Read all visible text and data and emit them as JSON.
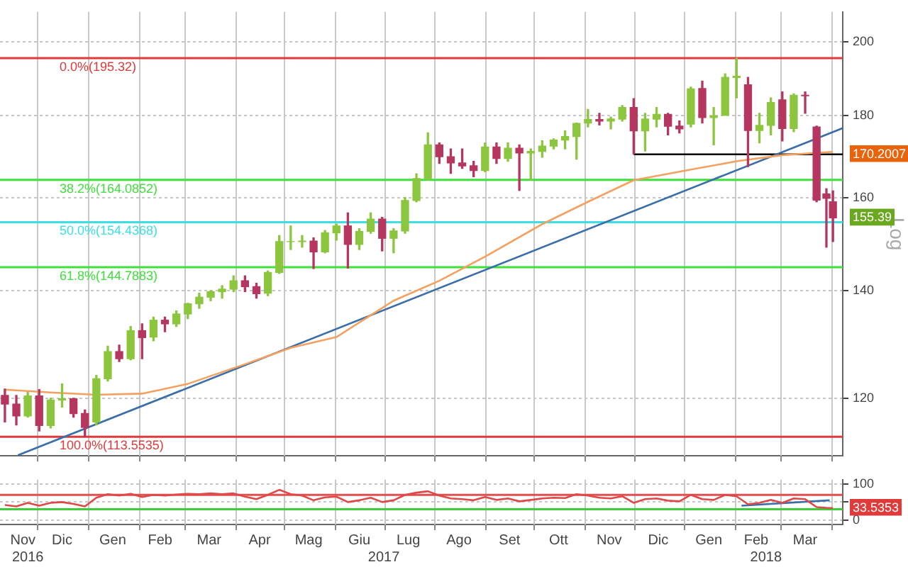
{
  "chart_data": [
    {
      "type": "candlestick",
      "ylabel": "Log",
      "log": true,
      "grid": true,
      "tick_labels": "y",
      "xlim": [
        "2016-11-08",
        "2018-04-08"
      ],
      "ylim": [
        110.5,
        208.7
      ],
      "yticks": [
        120,
        140,
        160,
        180,
        200,
        {
          "value": 170.2007,
          "label": "170.2007"
        },
        {
          "value": 155.39,
          "label": "155.39"
        }
      ],
      "xticks": [
        {
          "value": "2016-12-01",
          "label": null
        },
        {
          "value": "2017-01-01",
          "label": null
        },
        {
          "value": "2017-02-01",
          "label": null
        },
        {
          "value": "2017-03-01",
          "label": null
        },
        {
          "value": "2017-04-01",
          "label": null
        },
        {
          "value": "2017-05-01",
          "label": null
        },
        {
          "value": "2017-06-01",
          "label": null
        },
        {
          "value": "2017-07-01",
          "label": null
        },
        {
          "value": "2017-08-01",
          "label": null
        },
        {
          "value": "2017-09-01",
          "label": null
        },
        {
          "value": "2017-10-01",
          "label": null
        },
        {
          "value": "2017-11-01",
          "label": null
        },
        {
          "value": "2017-12-01",
          "label": null
        },
        {
          "value": "2018-01-01",
          "label": null
        },
        {
          "value": "2018-02-01",
          "label": null
        },
        {
          "value": "2018-03-01",
          "label": null
        },
        {
          "value": "2018-04-01",
          "label": null
        }
      ],
      "series": [
        {
          "x": [
            "2016-11-11",
            "2016-11-18",
            "2016-11-25",
            "2016-12-02",
            "2016-12-09",
            "2016-12-16",
            "2016-12-23",
            "2016-12-30",
            "2017-01-06",
            "2017-01-13",
            "2017-01-20",
            "2017-01-27",
            "2017-02-03",
            "2017-02-10",
            "2017-02-17",
            "2017-02-24",
            "2017-03-03",
            "2017-03-10",
            "2017-03-17",
            "2017-03-24",
            "2017-03-31",
            "2017-04-07",
            "2017-04-14",
            "2017-04-21",
            "2017-04-28",
            "2017-05-05",
            "2017-05-12",
            "2017-05-19",
            "2017-05-26",
            "2017-06-02",
            "2017-06-09",
            "2017-06-16",
            "2017-06-23",
            "2017-06-30",
            "2017-07-07",
            "2017-07-14",
            "2017-07-21",
            "2017-07-28",
            "2017-08-04",
            "2017-08-11",
            "2017-08-18",
            "2017-08-25",
            "2017-09-01",
            "2017-09-08",
            "2017-09-15",
            "2017-09-22",
            "2017-09-29",
            "2017-10-06",
            "2017-10-13",
            "2017-10-20",
            "2017-10-27",
            "2017-11-03",
            "2017-11-10",
            "2017-11-17",
            "2017-11-24",
            "2017-12-01",
            "2017-12-08",
            "2017-12-15",
            "2017-12-22",
            "2017-12-29",
            "2018-01-05",
            "2018-01-12",
            "2018-01-19",
            "2018-01-26",
            "2018-02-02",
            "2018-02-09",
            "2018-02-16",
            "2018-02-23",
            "2018-03-02",
            "2018-03-09",
            "2018-03-16",
            "2018-03-23",
            "2018-03-29",
            "2018-04-02"
          ],
          "ohlc": [
            [
              120.5,
              121.6,
              116.0,
              119.0
            ],
            [
              119.0,
              120.5,
              115.5,
              117.0
            ],
            [
              117.0,
              121.0,
              116.8,
              120.4
            ],
            [
              120.4,
              121.5,
              114.5,
              115.4
            ],
            [
              115.4,
              120.0,
              115.0,
              119.7
            ],
            [
              119.7,
              122.5,
              118.5,
              119.9
            ],
            [
              119.9,
              120.0,
              116.8,
              117.4
            ],
            [
              117.4,
              118.0,
              113.55,
              115.1
            ],
            [
              116.0,
              124.0,
              115.5,
              123.4
            ],
            [
              123.4,
              129.3,
              123.0,
              128.3
            ],
            [
              128.3,
              129.5,
              126.5,
              127.0
            ],
            [
              127.0,
              133.0,
              126.8,
              132.2
            ],
            [
              132.2,
              133.5,
              127.0,
              130.9
            ],
            [
              131.0,
              134.8,
              130.3,
              134.2
            ],
            [
              134.2,
              134.8,
              132.0,
              133.5
            ],
            [
              133.5,
              136.0,
              133.0,
              135.4
            ],
            [
              135.4,
              137.5,
              134.5,
              137.4
            ],
            [
              137.4,
              139.5,
              136.5,
              138.7
            ],
            [
              138.7,
              140.0,
              138.0,
              139.8
            ],
            [
              139.8,
              141.0,
              138.5,
              140.3
            ],
            [
              140.3,
              143.0,
              139.8,
              142.0
            ],
            [
              142.0,
              143.0,
              139.8,
              140.8
            ],
            [
              140.8,
              141.5,
              138.5,
              139.4
            ],
            [
              139.5,
              144.0,
              139.0,
              143.7
            ],
            [
              143.7,
              151.5,
              143.5,
              150.2
            ],
            [
              150.2,
              153.6,
              148.5,
              150.2
            ],
            [
              150.2,
              151.5,
              149.0,
              150.3
            ],
            [
              150.3,
              151.0,
              144.5,
              148.0
            ],
            [
              148.0,
              152.6,
              147.8,
              152.1
            ],
            [
              152.1,
              154.0,
              150.5,
              153.6
            ],
            [
              153.6,
              156.5,
              144.6,
              149.6
            ],
            [
              149.6,
              153.0,
              148.5,
              152.4
            ],
            [
              152.4,
              156.5,
              152.0,
              155.1
            ],
            [
              155.1,
              155.5,
              148.2,
              150.9
            ],
            [
              150.9,
              153.0,
              147.8,
              152.5
            ],
            [
              152.5,
              160.0,
              152.0,
              159.3
            ],
            [
              159.3,
              165.5,
              159.0,
              164.4
            ],
            [
              164.4,
              175.5,
              164.0,
              172.5
            ],
            [
              172.5,
              173.0,
              168.0,
              169.6
            ],
            [
              169.6,
              171.5,
              165.6,
              168.1
            ],
            [
              168.1,
              171.5,
              166.8,
              167.4
            ],
            [
              167.4,
              168.5,
              164.8,
              166.3
            ],
            [
              166.3,
              173.0,
              166.0,
              172.0
            ],
            [
              172.0,
              173.0,
              168.0,
              169.2
            ],
            [
              169.2,
              173.0,
              168.5,
              171.7
            ],
            [
              171.7,
              172.5,
              161.6,
              170.5
            ],
            [
              170.5,
              171.5,
              164.0,
              170.9
            ],
            [
              170.9,
              173.5,
              169.5,
              172.2
            ],
            [
              172.2,
              174.0,
              171.5,
              173.7
            ],
            [
              173.7,
              176.0,
              171.5,
              174.6
            ],
            [
              174.6,
              178.0,
              169.0,
              177.9
            ],
            [
              178.0,
              181.5,
              177.0,
              178.9
            ],
            [
              178.9,
              180.5,
              177.5,
              178.5
            ],
            [
              178.5,
              179.5,
              176.5,
              179.0
            ],
            [
              179.0,
              182.5,
              178.5,
              182.0
            ],
            [
              182.0,
              184.3,
              170.3,
              176.0
            ],
            [
              176.0,
              180.5,
              171.0,
              179.0
            ],
            [
              179.0,
              182.0,
              177.0,
              180.2
            ],
            [
              180.2,
              180.5,
              175.0,
              177.2
            ],
            [
              177.2,
              178.5,
              175.5,
              176.5
            ],
            [
              177.7,
              187.4,
              177.0,
              186.9
            ],
            [
              187.0,
              189.0,
              178.0,
              179.4
            ],
            [
              179.4,
              182.0,
              172.5,
              179.8
            ],
            [
              180.0,
              191.0,
              180.0,
              190.0
            ],
            [
              190.0,
              195.32,
              184.5,
              190.3
            ],
            [
              188.0,
              190.0,
              167.2,
              176.1
            ],
            [
              176.1,
              180.5,
              173.0,
              177.4
            ],
            [
              177.4,
              184.5,
              175.0,
              183.3
            ],
            [
              184.0,
              186.1,
              173.5,
              176.6
            ],
            [
              176.6,
              185.6,
              175.8,
              185.2
            ],
            [
              185.2,
              186.1,
              180.5,
              185.1
            ],
            [
              177.0,
              177.2,
              159.0,
              159.4
            ],
            [
              160.8,
              162.0,
              149.0,
              159.8
            ],
            [
              159.0,
              161.5,
              150.2,
              155.39
            ]
          ],
          "colors": [
            "#b5365e",
            "#b5365e",
            "#8cc63f",
            "#b5365e",
            "#8cc63f",
            "#8cc63f",
            "#b5365e",
            "#b5365e",
            "#8cc63f",
            "#8cc63f",
            "#b5365e",
            "#8cc63f",
            "#b5365e",
            "#8cc63f",
            "#b5365e",
            "#8cc63f",
            "#8cc63f",
            "#8cc63f",
            "#8cc63f",
            "#8cc63f",
            "#8cc63f",
            "#b5365e",
            "#b5365e",
            "#8cc63f",
            "#8cc63f",
            "#8cc63f",
            "#8cc63f",
            "#b5365e",
            "#8cc63f",
            "#8cc63f",
            "#b5365e",
            "#8cc63f",
            "#8cc63f",
            "#b5365e",
            "#8cc63f",
            "#8cc63f",
            "#8cc63f",
            "#8cc63f",
            "#b5365e",
            "#b5365e",
            "#b5365e",
            "#b5365e",
            "#8cc63f",
            "#b5365e",
            "#8cc63f",
            "#b5365e",
            "#8cc63f",
            "#8cc63f",
            "#8cc63f",
            "#8cc63f",
            "#8cc63f",
            "#8cc63f",
            "#b5365e",
            "#8cc63f",
            "#8cc63f",
            "#b5365e",
            "#8cc63f",
            "#8cc63f",
            "#b5365e",
            "#b5365e",
            "#8cc63f",
            "#b5365e",
            "#8cc63f",
            "#8cc63f",
            "#8cc63f",
            "#b5365e",
            "#8cc63f",
            "#8cc63f",
            "#b5365e",
            "#8cc63f",
            "#b5365e",
            "#b5365e",
            "#b5365e",
            "#b5365e"
          ]
        },
        {
          "type": "line",
          "color": "#f4a060",
          "x": [
            "2016-11-11",
            "2016-12-09",
            "2017-01-06",
            "2017-02-03",
            "2017-03-03",
            "2017-04-07",
            "2017-05-05",
            "2017-06-02",
            "2017-07-07",
            "2017-08-04",
            "2017-09-01",
            "2017-10-06",
            "2017-11-03",
            "2017-12-01",
            "2018-01-05",
            "2018-02-02",
            "2018-03-02",
            "2018-04-02"
          ],
          "values": [
            121.5,
            121.0,
            120.6,
            120.8,
            122.5,
            126.0,
            129.0,
            131.0,
            138.0,
            142.0,
            147.0,
            154.0,
            159.0,
            164.0,
            166.5,
            168.5,
            170.0,
            170.8
          ]
        },
        {
          "type": "line",
          "color": "#3a6ea8",
          "x": [
            "2016-11-19",
            "2018-04-08"
          ],
          "values": [
            110.6,
            176.7
          ]
        },
        {
          "type": "line",
          "color": "#000000",
          "x": [
            "2017-12-01",
            "2018-04-08"
          ],
          "values": [
            170.2007,
            170.2007
          ]
        }
      ],
      "ref_lines": [
        {
          "axis": "y",
          "value": 195.32,
          "label": "0.0%(195.32)",
          "color": "#e03a3a"
        },
        {
          "axis": "y",
          "value": 164.0852,
          "label": "38.2%(164.0852)",
          "color": "#3ee03a"
        },
        {
          "axis": "y",
          "value": 154.4368,
          "label": "50.0%(154.4368)",
          "color": "#3ae0e6"
        },
        {
          "axis": "y",
          "value": 144.7883,
          "label": "61.8%(144.7883)",
          "color": "#3ee03a"
        },
        {
          "axis": "y",
          "value": 113.5535,
          "label": "100.0%(113.5535)",
          "color": "#e03a3a"
        }
      ]
    },
    {
      "type": "line",
      "grid": true,
      "xlim": [
        "2016-11-08",
        "2018-04-08"
      ],
      "ylim": [
        -12,
        112
      ],
      "yticks": [
        0,
        {
          "value": 50,
          "label": null
        },
        100,
        {
          "value": 33.5353,
          "label": "33.5353"
        }
      ],
      "x2lim": [
        "2016-11-08",
        "2018-04-08"
      ],
      "x2ticks": [
        {
          "value": "2016-11-25",
          "label": "2016"
        },
        {
          "value": "2017-07-01",
          "label": "2017"
        },
        {
          "value": "2018-02-20",
          "label": "2018"
        }
      ],
      "xticks": [
        {
          "value": "2016-11-22",
          "label": "Nov"
        },
        {
          "value": "2016-12-01",
          "label": null
        },
        {
          "value": "2016-12-16",
          "label": "Dic"
        },
        {
          "value": "2017-01-01",
          "label": null
        },
        {
          "value": "2017-01-16",
          "label": "Gen"
        },
        {
          "value": "2017-02-01",
          "label": null
        },
        {
          "value": "2017-02-14",
          "label": "Feb"
        },
        {
          "value": "2017-03-01",
          "label": null
        },
        {
          "value": "2017-03-16",
          "label": "Mar"
        },
        {
          "value": "2017-04-01",
          "label": null
        },
        {
          "value": "2017-04-16",
          "label": "Apr"
        },
        {
          "value": "2017-05-01",
          "label": null
        },
        {
          "value": "2017-05-16",
          "label": "Mag"
        },
        {
          "value": "2017-06-01",
          "label": null
        },
        {
          "value": "2017-06-16",
          "label": "Giu"
        },
        {
          "value": "2017-07-01",
          "label": null
        },
        {
          "value": "2017-07-16",
          "label": "Lug"
        },
        {
          "value": "2017-08-01",
          "label": null
        },
        {
          "value": "2017-08-16",
          "label": "Ago"
        },
        {
          "value": "2017-09-01",
          "label": null
        },
        {
          "value": "2017-09-16",
          "label": "Set"
        },
        {
          "value": "2017-10-01",
          "label": null
        },
        {
          "value": "2017-10-16",
          "label": "Ott"
        },
        {
          "value": "2017-11-01",
          "label": null
        },
        {
          "value": "2017-11-16",
          "label": "Nov"
        },
        {
          "value": "2017-12-01",
          "label": null
        },
        {
          "value": "2017-12-16",
          "label": "Dic"
        },
        {
          "value": "2018-01-01",
          "label": null
        },
        {
          "value": "2018-01-16",
          "label": "Gen"
        },
        {
          "value": "2018-02-01",
          "label": null
        },
        {
          "value": "2018-02-14",
          "label": "Feb"
        },
        {
          "value": "2018-03-01",
          "label": null
        },
        {
          "value": "2018-03-16",
          "label": "Mar"
        },
        {
          "value": "2018-04-01",
          "label": null
        }
      ],
      "series": [
        {
          "color": "#e04848",
          "x": [
            "2016-11-11",
            "2016-11-18",
            "2016-11-25",
            "2016-12-02",
            "2016-12-09",
            "2016-12-16",
            "2016-12-23",
            "2016-12-30",
            "2017-01-06",
            "2017-01-13",
            "2017-01-20",
            "2017-01-27",
            "2017-02-03",
            "2017-02-10",
            "2017-02-17",
            "2017-02-24",
            "2017-03-03",
            "2017-03-10",
            "2017-03-17",
            "2017-03-24",
            "2017-03-31",
            "2017-04-07",
            "2017-04-14",
            "2017-04-21",
            "2017-04-28",
            "2017-05-05",
            "2017-05-12",
            "2017-05-19",
            "2017-05-26",
            "2017-06-02",
            "2017-06-09",
            "2017-06-16",
            "2017-06-23",
            "2017-06-30",
            "2017-07-07",
            "2017-07-14",
            "2017-07-21",
            "2017-07-28",
            "2017-08-04",
            "2017-08-11",
            "2017-08-18",
            "2017-08-25",
            "2017-09-01",
            "2017-09-08",
            "2017-09-15",
            "2017-09-22",
            "2017-09-29",
            "2017-10-06",
            "2017-10-13",
            "2017-10-20",
            "2017-10-27",
            "2017-11-03",
            "2017-11-10",
            "2017-11-17",
            "2017-11-24",
            "2017-12-01",
            "2017-12-08",
            "2017-12-15",
            "2017-12-22",
            "2017-12-29",
            "2018-01-05",
            "2018-01-12",
            "2018-01-19",
            "2018-01-26",
            "2018-02-02",
            "2018-02-09",
            "2018-02-16",
            "2018-02-23",
            "2018-03-02",
            "2018-03-09",
            "2018-03-16",
            "2018-03-23",
            "2018-03-29",
            "2018-04-02"
          ],
          "values": [
            42,
            38,
            48,
            40,
            48,
            50,
            45,
            38,
            62,
            72,
            68,
            73,
            64,
            70,
            68,
            71,
            73,
            72,
            74,
            72,
            74,
            65,
            58,
            70,
            84,
            72,
            68,
            55,
            63,
            65,
            50,
            55,
            62,
            50,
            55,
            70,
            76,
            80,
            68,
            60,
            58,
            55,
            64,
            56,
            60,
            52,
            56,
            60,
            62,
            61,
            72,
            68,
            62,
            60,
            66,
            48,
            58,
            60,
            54,
            52,
            70,
            58,
            56,
            70,
            66,
            44,
            48,
            56,
            48,
            60,
            58,
            36,
            34,
            33.5353
          ]
        },
        {
          "type": "line",
          "color": "#3a6ea8",
          "x": [
            "2018-02-05",
            "2018-03-31"
          ],
          "values": [
            40,
            55
          ]
        }
      ],
      "ref_lines": [
        {
          "axis": "y",
          "value": 70,
          "color": "#e05050"
        },
        {
          "axis": "y",
          "value": 30,
          "color": "#3ecc3a"
        }
      ]
    }
  ]
}
